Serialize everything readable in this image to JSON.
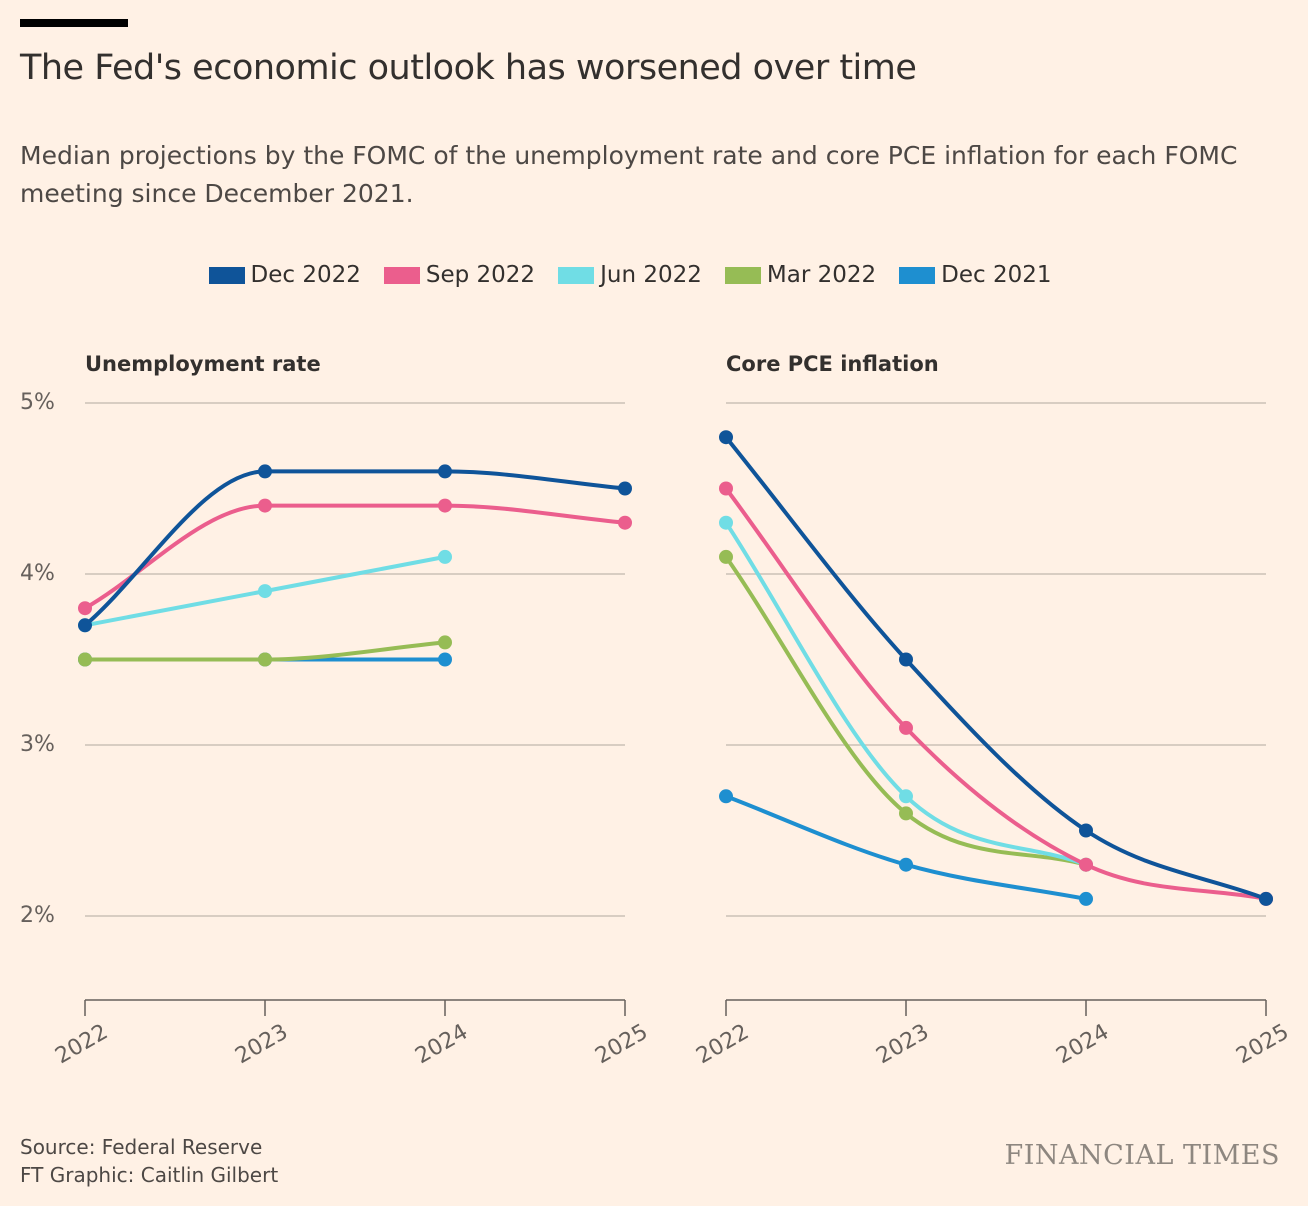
{
  "header": {
    "title": "The Fed's economic outlook has worsened over time",
    "subtitle": "Median projections by the FOMC of the unemployment rate and core PCE inflation for each FOMC meeting since December 2021."
  },
  "legend": [
    {
      "label": "Dec 2022",
      "color": "#0f5499"
    },
    {
      "label": "Sep 2022",
      "color": "#eb5e8d"
    },
    {
      "label": "Jun 2022",
      "color": "#70dde5"
    },
    {
      "label": "Mar 2022",
      "color": "#96bc55"
    },
    {
      "label": "Dec 2021",
      "color": "#1e8fd0"
    }
  ],
  "chart_data": [
    {
      "type": "line",
      "title": "Unemployment rate",
      "x": [
        "2022",
        "2023",
        "2024",
        "2025"
      ],
      "yticks": [
        "5%",
        "4%",
        "3%",
        "2%"
      ],
      "ylim": [
        1.5,
        5
      ],
      "series": [
        {
          "name": "Dec 2022",
          "color": "#0f5499",
          "values": [
            3.7,
            4.6,
            4.6,
            4.5
          ]
        },
        {
          "name": "Sep 2022",
          "color": "#eb5e8d",
          "values": [
            3.8,
            4.4,
            4.4,
            4.3
          ]
        },
        {
          "name": "Jun 2022",
          "color": "#70dde5",
          "values": [
            3.7,
            3.9,
            4.1,
            null
          ]
        },
        {
          "name": "Mar 2022",
          "color": "#96bc55",
          "values": [
            3.5,
            3.5,
            3.6,
            null
          ]
        },
        {
          "name": "Dec 2021",
          "color": "#1e8fd0",
          "values": [
            3.5,
            3.5,
            3.5,
            null
          ]
        }
      ]
    },
    {
      "type": "line",
      "title": "Core PCE inflation",
      "x": [
        "2022",
        "2023",
        "2024",
        "2025"
      ],
      "ylim": [
        1.5,
        5
      ],
      "series": [
        {
          "name": "Dec 2022",
          "color": "#0f5499",
          "values": [
            4.8,
            3.5,
            2.5,
            2.1
          ]
        },
        {
          "name": "Sep 2022",
          "color": "#eb5e8d",
          "values": [
            4.5,
            3.1,
            2.3,
            2.1
          ]
        },
        {
          "name": "Jun 2022",
          "color": "#70dde5",
          "values": [
            4.3,
            2.7,
            2.3,
            null
          ]
        },
        {
          "name": "Mar 2022",
          "color": "#96bc55",
          "values": [
            4.1,
            2.6,
            2.3,
            null
          ]
        },
        {
          "name": "Dec 2021",
          "color": "#1e8fd0",
          "values": [
            2.7,
            2.3,
            2.1,
            null
          ]
        }
      ]
    }
  ],
  "footer": {
    "source": "Source: Federal Reserve",
    "credit": "FT Graphic: Caitlin Gilbert",
    "logo": "FINANCIAL TIMES"
  }
}
